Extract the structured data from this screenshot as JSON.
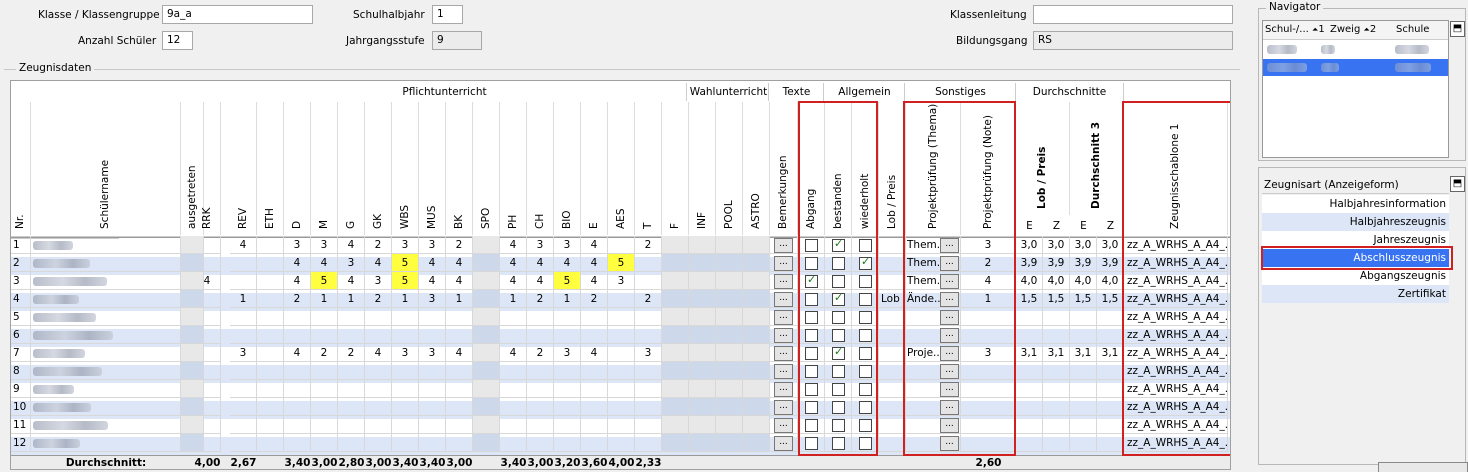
{
  "header": {
    "klasse_label": "Klasse / Klassengruppe",
    "klasse_value": "9a_a",
    "anzahl_label": "Anzahl Schüler",
    "anzahl_value": "12",
    "schulhalbjahr_label": "Schulhalbjahr",
    "schulhalbjahr_value": "1",
    "jahrgang_label": "Jahrgangsstufe",
    "jahrgang_value": "9",
    "klassenleitung_label": "Klassenleitung",
    "klassenleitung_value": "",
    "bildungsgang_label": "Bildungsgang",
    "bildungsgang_value": "RS"
  },
  "section_title": "Zeugnisdaten",
  "groups": {
    "pflicht": "Pflichtunterricht",
    "wahl": "Wahlunterricht",
    "texte": "Texte",
    "allgemein": "Allgemein",
    "sonstiges": "Sonstiges",
    "durchschnitte": "Durchschnitte"
  },
  "columns": {
    "nr": "Nr.",
    "name": "Schülername",
    "subjects": [
      "ausgetreten",
      "RRK",
      "REV",
      "ETH",
      "D",
      "M",
      "G",
      "GK",
      "WBS",
      "MUS",
      "BK",
      "SPO",
      "PH",
      "CH",
      "BIO",
      "E",
      "AES",
      "T",
      "F",
      "INF",
      "POOL",
      "ASTRO"
    ],
    "bemerkungen": "Bemerkungen",
    "abgang": "Abgang",
    "bestanden": "bestanden",
    "wiederholt": "wiederholt",
    "lob": "Lob / Preis",
    "thema": "Projektprüfung (Thema)",
    "note": "Projektprüfung (Note)",
    "lob2": "Lob / Preis",
    "ds3": "Durchschnitt 3",
    "ez": [
      "E",
      "Z",
      "E",
      "Z"
    ],
    "schablone": "Zeugnisschablone 1"
  },
  "rows": [
    {
      "nr": "1",
      "grades": [
        "",
        "",
        "4",
        "",
        "3",
        "3",
        "4",
        "2",
        "3",
        "3",
        "2",
        "",
        "4",
        "3",
        "3",
        "4",
        "",
        "2",
        "",
        "",
        "",
        ""
      ],
      "abgang": false,
      "bestanden": true,
      "wiederholt": false,
      "lob": "",
      "thema": "Them...",
      "note": "3",
      "d": [
        "3,0",
        "3,0",
        "3,0",
        "3,0"
      ]
    },
    {
      "nr": "2",
      "grades": [
        "",
        "",
        "",
        "",
        "4",
        "4",
        "3",
        "4",
        "5",
        "4",
        "4",
        "",
        "4",
        "4",
        "4",
        "4",
        "5",
        "",
        "",
        "",
        "",
        ""
      ],
      "abgang": false,
      "bestanden": false,
      "wiederholt": true,
      "lob": "",
      "thema": "Them...",
      "note": "2",
      "d": [
        "3,9",
        "3,9",
        "3,9",
        "3,9"
      ]
    },
    {
      "nr": "3",
      "grades": [
        "",
        "4",
        "",
        "",
        "4",
        "5",
        "4",
        "3",
        "5",
        "4",
        "4",
        "",
        "4",
        "4",
        "5",
        "4",
        "3",
        "",
        "",
        "",
        "",
        ""
      ],
      "abgang": true,
      "bestanden": false,
      "wiederholt": false,
      "lob": "",
      "thema": "Them...",
      "note": "4",
      "d": [
        "4,0",
        "4,0",
        "4,0",
        "4,0"
      ]
    },
    {
      "nr": "4",
      "grades": [
        "",
        "",
        "1",
        "",
        "2",
        "1",
        "1",
        "2",
        "1",
        "3",
        "1",
        "",
        "1",
        "2",
        "1",
        "2",
        "",
        "2",
        "",
        "",
        "",
        ""
      ],
      "abgang": false,
      "bestanden": true,
      "wiederholt": false,
      "lob": "Lob",
      "thema": "Ände...",
      "note": "1",
      "d": [
        "1,5",
        "1,5",
        "1,5",
        "1,5"
      ]
    },
    {
      "nr": "5",
      "grades": [
        "",
        "",
        "",
        "",
        "",
        "",
        "",
        "",
        "",
        "",
        "",
        "",
        "",
        "",
        "",
        "",
        "",
        "",
        "",
        "",
        "",
        ""
      ],
      "abgang": false,
      "bestanden": false,
      "wiederholt": false,
      "lob": "",
      "thema": "",
      "note": "",
      "d": [
        "",
        "",
        "",
        ""
      ]
    },
    {
      "nr": "6",
      "grades": [
        "",
        "",
        "",
        "",
        "",
        "",
        "",
        "",
        "",
        "",
        "",
        "",
        "",
        "",
        "",
        "",
        "",
        "",
        "",
        "",
        "",
        ""
      ],
      "abgang": false,
      "bestanden": false,
      "wiederholt": false,
      "lob": "",
      "thema": "",
      "note": "",
      "d": [
        "",
        "",
        "",
        ""
      ]
    },
    {
      "nr": "7",
      "grades": [
        "",
        "",
        "3",
        "",
        "4",
        "2",
        "2",
        "4",
        "3",
        "3",
        "4",
        "",
        "4",
        "2",
        "3",
        "4",
        "",
        "3",
        "",
        "",
        "",
        ""
      ],
      "abgang": false,
      "bestanden": true,
      "wiederholt": false,
      "lob": "",
      "thema": "Proje...",
      "note": "3",
      "d": [
        "3,1",
        "3,1",
        "3,1",
        "3,1"
      ]
    },
    {
      "nr": "8",
      "grades": [
        "",
        "",
        "",
        "",
        "",
        "",
        "",
        "",
        "",
        "",
        "",
        "",
        "",
        "",
        "",
        "",
        "",
        "",
        "",
        "",
        "",
        ""
      ],
      "abgang": false,
      "bestanden": false,
      "wiederholt": false,
      "lob": "",
      "thema": "",
      "note": "",
      "d": [
        "",
        "",
        "",
        ""
      ]
    },
    {
      "nr": "9",
      "grades": [
        "",
        "",
        "",
        "",
        "",
        "",
        "",
        "",
        "",
        "",
        "",
        "",
        "",
        "",
        "",
        "",
        "",
        "",
        "",
        "",
        "",
        ""
      ],
      "abgang": false,
      "bestanden": false,
      "wiederholt": false,
      "lob": "",
      "thema": "",
      "note": "",
      "d": [
        "",
        "",
        "",
        ""
      ]
    },
    {
      "nr": "10",
      "grades": [
        "",
        "",
        "",
        "",
        "",
        "",
        "",
        "",
        "",
        "",
        "",
        "",
        "",
        "",
        "",
        "",
        "",
        "",
        "",
        "",
        "",
        ""
      ],
      "abgang": false,
      "bestanden": false,
      "wiederholt": false,
      "lob": "",
      "thema": "",
      "note": "",
      "d": [
        "",
        "",
        "",
        ""
      ]
    },
    {
      "nr": "11",
      "grades": [
        "",
        "",
        "",
        "",
        "",
        "",
        "",
        "",
        "",
        "",
        "",
        "",
        "",
        "",
        "",
        "",
        "",
        "",
        "",
        "",
        "",
        ""
      ],
      "abgang": false,
      "bestanden": false,
      "wiederholt": false,
      "lob": "",
      "thema": "",
      "note": "",
      "d": [
        "",
        "",
        "",
        ""
      ]
    },
    {
      "nr": "12",
      "grades": [
        "",
        "",
        "",
        "",
        "",
        "",
        "",
        "",
        "",
        "",
        "",
        "",
        "",
        "",
        "",
        "",
        "",
        "",
        "",
        "",
        "",
        ""
      ],
      "abgang": false,
      "bestanden": false,
      "wiederholt": false,
      "lob": "",
      "thema": "",
      "note": "",
      "d": [
        "",
        "",
        "",
        ""
      ]
    }
  ],
  "schablone_value": "zz_A_WRHS_A_A4_...",
  "footer": {
    "label": "Durchschnitt:",
    "averages": [
      "",
      "4,00",
      "2,67",
      "",
      "3,40",
      "3,00",
      "2,80",
      "3,00",
      "3,40",
      "3,40",
      "3,00",
      "",
      "3,40",
      "3,00",
      "3,20",
      "3,60",
      "4,00",
      "2,33",
      "",
      "",
      "",
      ""
    ],
    "note_avg": "2,60"
  },
  "highlight_color": "#ffff40",
  "accent_color": "#3874f2",
  "navigator": {
    "title": "Navigator",
    "col1": "Schul-/...",
    "col1_sort": "1",
    "col2": "Zweig",
    "col2_sort": "2",
    "col3": "Schule"
  },
  "zeugnisart": {
    "title": "Zeugnisart (Anzeigeform)",
    "items": [
      "Halbjahresinformation",
      "Halbjahreszeugnis",
      "Jahreszeugnis",
      "Abschlusszeugnis",
      "Abgangszeugnis",
      "Zertifikat"
    ],
    "selected": "Abschlusszeugnis"
  }
}
